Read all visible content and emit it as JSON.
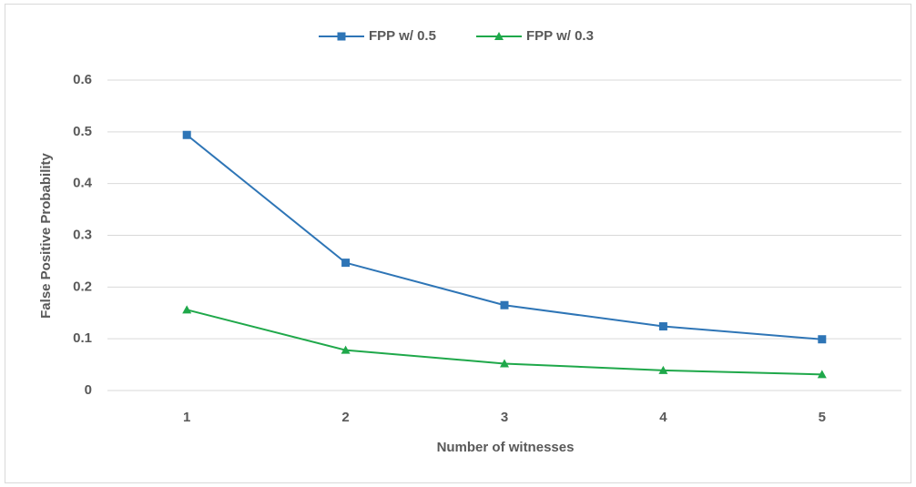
{
  "chart_data": {
    "type": "line",
    "x_label": "Number of witnesses",
    "y_label": "False Positive Probability",
    "categories": [
      "1",
      "2",
      "3",
      "4",
      "5"
    ],
    "series": [
      {
        "name": "FPP w/ 0.5",
        "color": "#2e75b6",
        "marker": "square",
        "values": [
          0.494,
          0.247,
          0.165,
          0.124,
          0.099
        ]
      },
      {
        "name": "FPP w/ 0.3",
        "color": "#1fa84a",
        "marker": "triangle",
        "values": [
          0.156,
          0.078,
          0.052,
          0.039,
          0.031
        ]
      }
    ],
    "ylim": [
      0,
      0.6
    ],
    "yticks": [
      0,
      0.1,
      0.2,
      0.3,
      0.4,
      0.5,
      0.6
    ],
    "grid": true,
    "legend": "top"
  }
}
